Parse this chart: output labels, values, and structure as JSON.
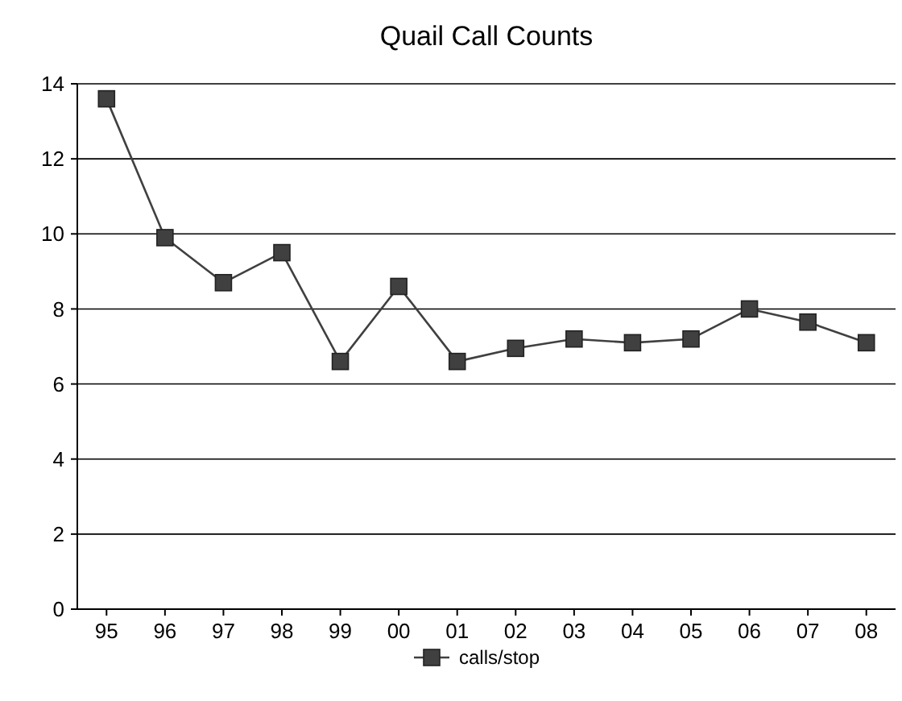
{
  "chart_data": {
    "type": "line",
    "title": "Quail Call Counts",
    "categories": [
      "95",
      "96",
      "97",
      "98",
      "99",
      "00",
      "01",
      "02",
      "03",
      "04",
      "05",
      "06",
      "07",
      "08"
    ],
    "series": [
      {
        "name": "calls/stop",
        "color": "#404040",
        "values": [
          13.6,
          9.9,
          8.7,
          9.5,
          6.6,
          8.6,
          6.6,
          6.95,
          7.2,
          7.1,
          7.2,
          8.0,
          7.65,
          7.1
        ]
      }
    ],
    "ylim": [
      0,
      14
    ],
    "yticks": [
      0,
      2,
      4,
      6,
      8,
      10,
      12,
      14
    ],
    "grid": "y",
    "legend": "bottom",
    "marker": "square",
    "line_style": "solid"
  }
}
